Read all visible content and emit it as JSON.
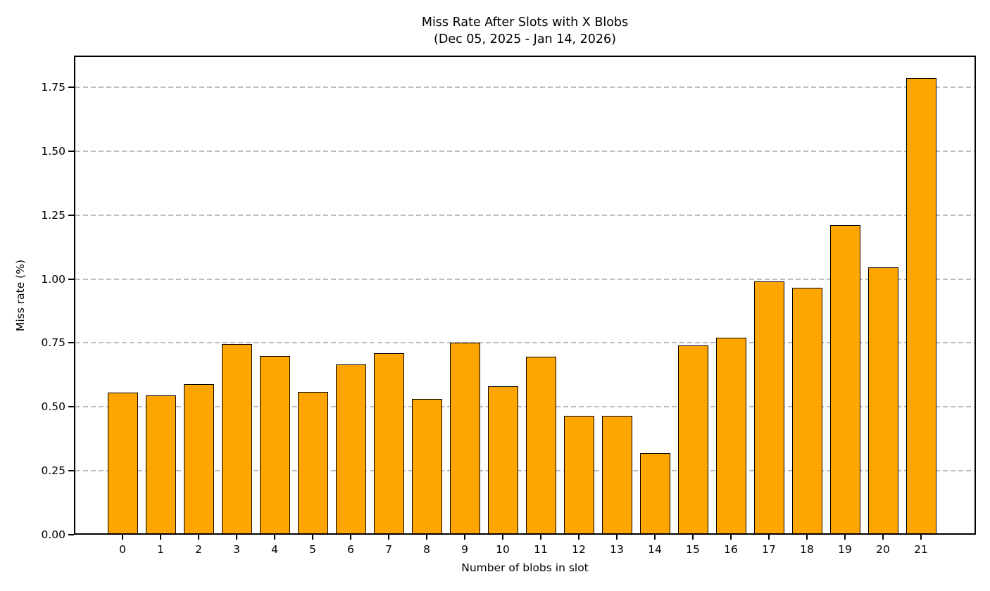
{
  "chart_data": {
    "type": "bar",
    "title": "Miss Rate After Slots with X Blobs",
    "subtitle": "(Dec 05, 2025 - Jan 14, 2026)",
    "xlabel": "Number of blobs in slot",
    "ylabel": "Miss rate (%)",
    "categories": [
      "0",
      "1",
      "2",
      "3",
      "4",
      "5",
      "6",
      "7",
      "8",
      "9",
      "10",
      "11",
      "12",
      "13",
      "14",
      "15",
      "16",
      "17",
      "18",
      "19",
      "20",
      "21"
    ],
    "values": [
      0.555,
      0.545,
      0.59,
      0.745,
      0.7,
      0.56,
      0.665,
      0.71,
      0.53,
      0.75,
      0.58,
      0.695,
      0.465,
      0.465,
      0.32,
      0.74,
      0.77,
      0.99,
      0.965,
      1.21,
      1.045,
      1.785
    ],
    "ylim": [
      0,
      1.874
    ],
    "yticks": [
      0.0,
      0.25,
      0.5,
      0.75,
      1.0,
      1.25,
      1.5,
      1.75
    ],
    "ytick_labels": [
      "0.00",
      "0.25",
      "0.50",
      "0.75",
      "1.00",
      "1.25",
      "1.50",
      "1.75"
    ],
    "grid": "horizontal-dashed",
    "legend": "none",
    "colors": {
      "bar_fill": "#FFA500",
      "bar_edge": "#000000",
      "grid_line": "#bdbdbd",
      "spine": "#000000",
      "text": "#000000",
      "background": "#ffffff"
    }
  }
}
